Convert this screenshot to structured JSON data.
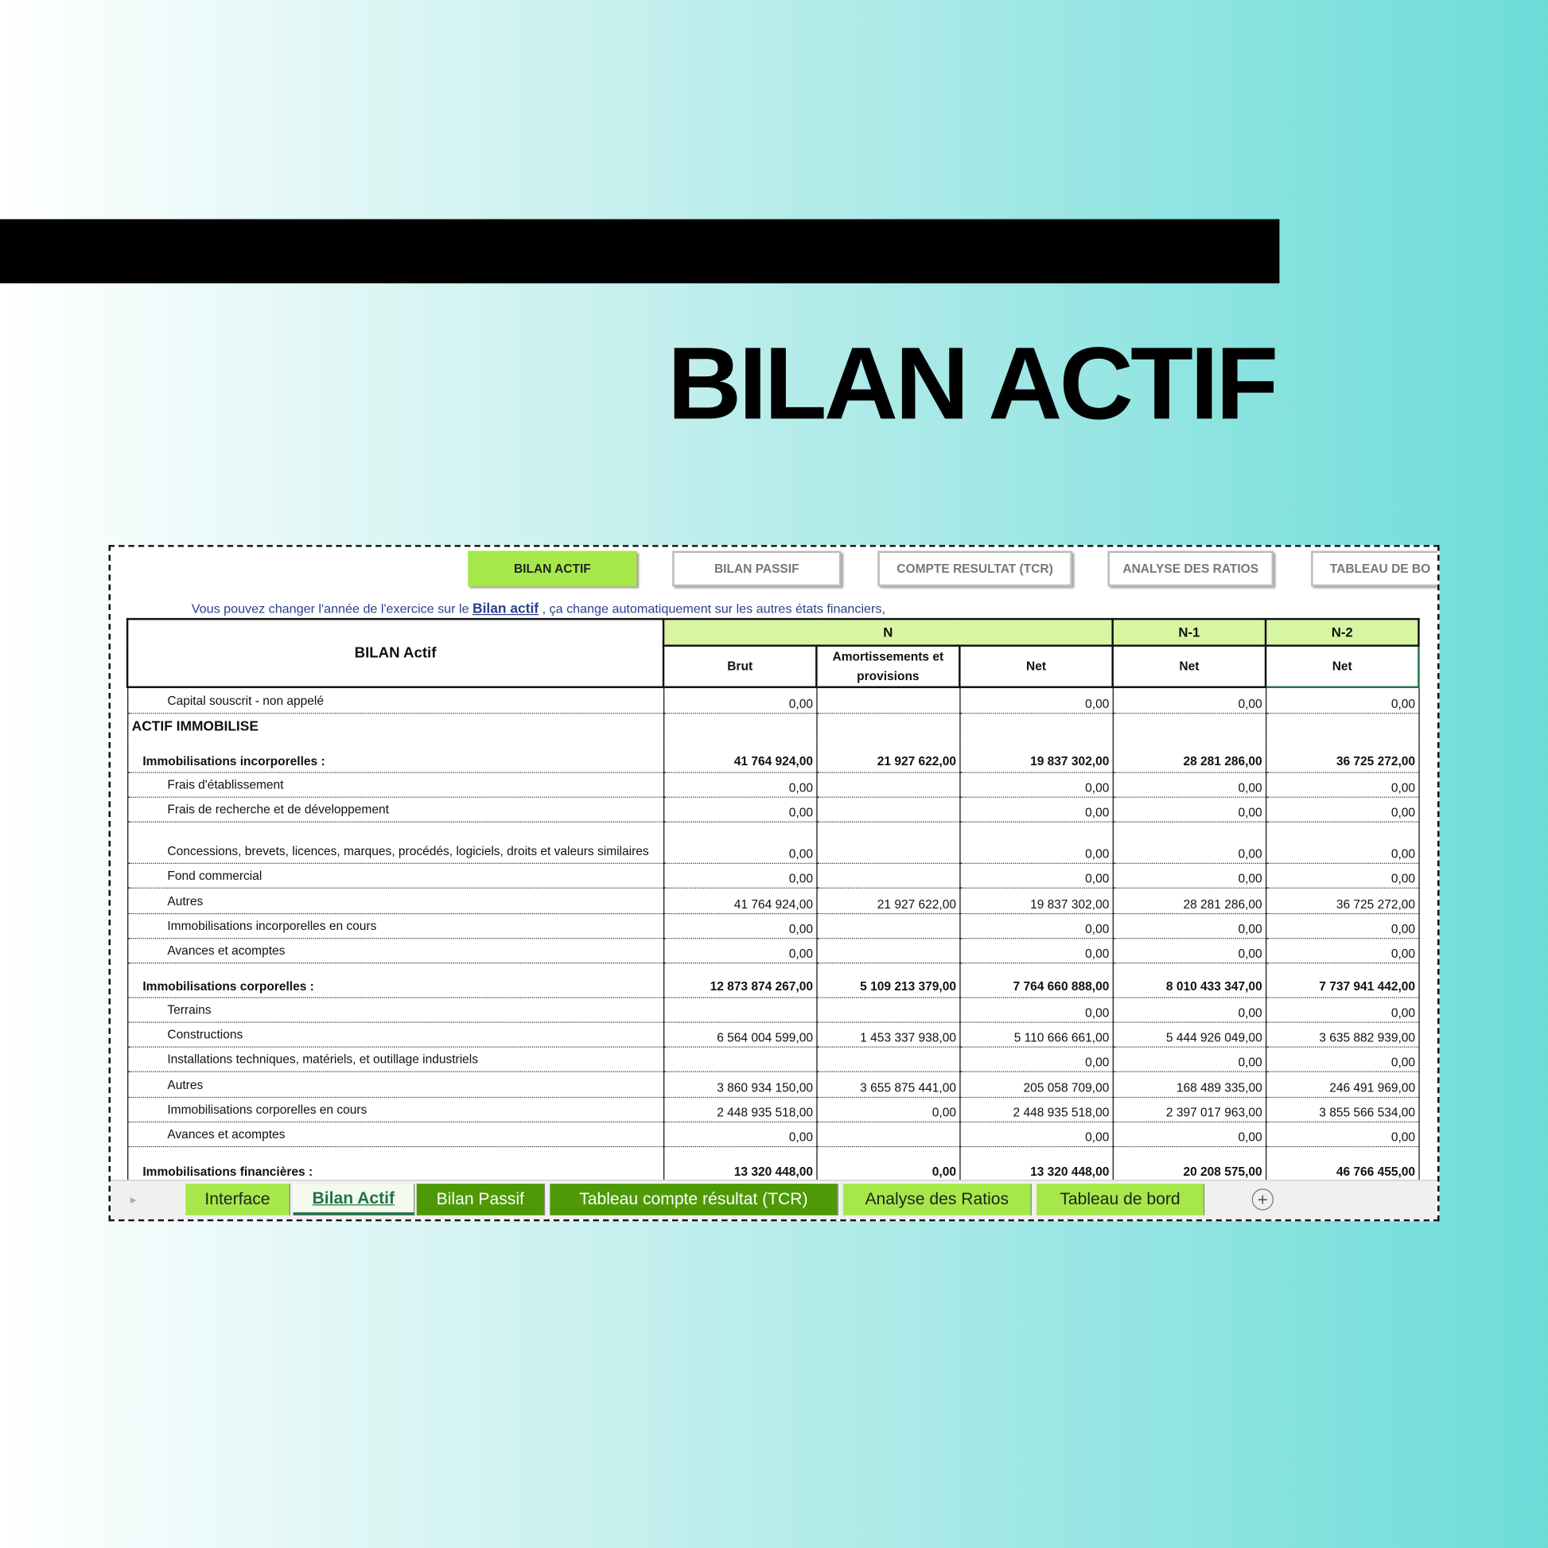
{
  "header": {
    "title": "BILAN ACTIF"
  },
  "nav_buttons": [
    "BILAN ACTIF",
    "BILAN PASSIF",
    "COMPTE RESULTAT (TCR)",
    "ANALYSE DES RATIOS",
    "TABLEAU DE BO"
  ],
  "note": {
    "before": "Vous pouvez changer l'année de l'exercice sur le",
    "link": "Bilan actif",
    "after": ", ça change automatiquement sur les autres états financiers,"
  },
  "table": {
    "title": "BILAN Actif",
    "groups": [
      "N",
      "N-1",
      "N-2"
    ],
    "columns": [
      "Brut",
      "Amortissements et provisions",
      "Net",
      "Net",
      "Net"
    ],
    "rows": [
      [
        "Capital souscrit - non appelé",
        "0,00",
        null,
        "0,00",
        "0,00",
        "0,00"
      ],
      [
        "ACTIF IMMOBILISE"
      ],
      [
        "Immobilisations incorporelles :",
        "41 764 924,00",
        "21 927 622,00",
        "19 837 302,00",
        "28 281 286,00",
        "36 725 272,00"
      ],
      [
        "Frais d'établissement",
        "0,00",
        null,
        "0,00",
        "0,00",
        "0,00"
      ],
      [
        "Frais de recherche et de développement",
        "0,00",
        null,
        "0,00",
        "0,00",
        "0,00"
      ],
      [
        "Concessions, brevets, licences, marques, procédés, logiciels, droits et valeurs similaires",
        "0,00",
        null,
        "0,00",
        "0,00",
        "0,00"
      ],
      [
        "Fond commercial",
        "0,00",
        null,
        "0,00",
        "0,00",
        "0,00"
      ],
      [
        "Autres",
        "41 764 924,00",
        "21 927 622,00",
        "19 837 302,00",
        "28 281 286,00",
        "36 725 272,00"
      ],
      [
        "Immobilisations incorporelles en cours",
        "0,00",
        null,
        "0,00",
        "0,00",
        "0,00"
      ],
      [
        "Avances et acomptes",
        "0,00",
        null,
        "0,00",
        "0,00",
        "0,00"
      ],
      [
        "Immobilisations corporelles :",
        "12 873 874 267,00",
        "5 109 213 379,00",
        "7 764 660 888,00",
        "8 010 433 347,00",
        "7 737 941 442,00"
      ],
      [
        "Terrains",
        null,
        null,
        "0,00",
        "0,00",
        "0,00"
      ],
      [
        "Constructions",
        "6 564 004 599,00",
        "1 453 337 938,00",
        "5 110 666 661,00",
        "5 444 926 049,00",
        "3 635 882 939,00"
      ],
      [
        "Installations techniques, matériels, et outillage industriels",
        null,
        null,
        "0,00",
        "0,00",
        "0,00"
      ],
      [
        "Autres",
        "3 860 934 150,00",
        "3 655 875 441,00",
        "205 058 709,00",
        "168 489 335,00",
        "246 491 969,00"
      ],
      [
        "Immobilisations corporelles en cours",
        "2 448 935 518,00",
        "0,00",
        "2 448 935 518,00",
        "2 397 017 963,00",
        "3 855 566 534,00"
      ],
      [
        "Avances et acomptes",
        "0,00",
        null,
        "0,00",
        "0,00",
        "0,00"
      ],
      [
        "Immobilisations financières :",
        "13 320 448,00",
        "0,00",
        "13 320 448,00",
        "20 208 575,00",
        "46 766 455,00"
      ]
    ]
  },
  "sheet_tabs": [
    "Interface",
    "Bilan Actif",
    "Bilan Passif",
    "Tableau compte résultat (TCR)",
    "Analyse des Ratios",
    "Tableau de bord"
  ]
}
